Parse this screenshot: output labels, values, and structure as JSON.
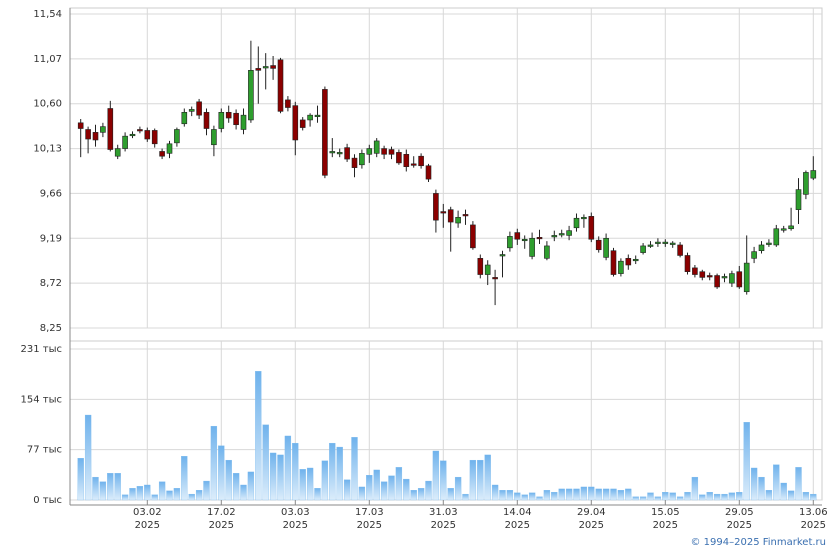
{
  "chart_data": [
    {
      "type": "candlestick",
      "open": [
        10.4,
        10.33,
        10.3,
        10.3,
        10.55,
        10.05,
        10.13,
        10.27,
        10.33,
        10.32,
        10.32,
        10.1,
        10.08,
        10.19,
        10.39,
        10.52,
        10.62,
        10.51,
        10.17,
        10.34,
        10.51,
        10.5,
        10.33,
        10.43,
        10.97,
        10.98,
        11.0,
        11.06,
        10.64,
        10.58,
        10.43,
        10.43,
        10.47,
        10.75,
        10.09,
        10.09,
        10.14,
        10.03,
        9.96,
        10.07,
        10.08,
        10.13,
        10.12,
        10.09,
        10.07,
        9.97,
        10.05,
        9.95,
        9.66,
        9.47,
        9.49,
        9.35,
        9.44,
        9.33,
        8.98,
        8.81,
        8.78,
        9.01,
        9.09,
        9.25,
        9.17,
        9.0,
        9.2,
        8.98,
        9.21,
        9.23,
        9.22,
        9.3,
        9.4,
        9.42,
        9.17,
        8.99,
        9.06,
        8.82,
        8.98,
        8.96,
        9.04,
        9.12,
        9.14,
        9.14,
        9.13,
        9.12,
        9.01,
        8.88,
        8.84,
        8.8,
        8.8,
        8.78,
        8.72,
        8.84,
        8.63,
        8.98,
        9.06,
        9.13,
        9.12,
        9.28,
        9.29,
        9.49,
        9.65,
        9.82
      ],
      "high": [
        10.44,
        10.36,
        10.38,
        10.4,
        10.63,
        10.17,
        10.3,
        10.31,
        10.36,
        10.35,
        10.34,
        10.13,
        10.21,
        10.35,
        10.55,
        10.57,
        10.65,
        10.55,
        10.37,
        10.55,
        10.58,
        10.54,
        10.55,
        11.26,
        11.2,
        11.13,
        11.1,
        11.08,
        10.68,
        10.62,
        10.46,
        10.5,
        10.58,
        10.78,
        10.24,
        10.13,
        10.18,
        10.07,
        10.12,
        10.17,
        10.24,
        10.16,
        10.15,
        10.12,
        10.12,
        10.05,
        10.08,
        9.97,
        9.7,
        9.55,
        9.52,
        9.48,
        9.49,
        9.37,
        9.02,
        8.96,
        8.86,
        9.06,
        9.26,
        9.29,
        9.22,
        9.25,
        9.28,
        9.16,
        9.27,
        9.28,
        9.32,
        9.45,
        9.44,
        9.46,
        9.21,
        9.24,
        9.09,
        8.98,
        9.02,
        9.01,
        9.14,
        9.16,
        9.19,
        9.18,
        9.16,
        9.15,
        9.04,
        8.91,
        8.86,
        8.83,
        8.82,
        8.82,
        8.85,
        8.9,
        9.22,
        9.1,
        9.16,
        9.18,
        9.33,
        9.32,
        9.51,
        9.82,
        9.9,
        10.05
      ],
      "low": [
        10.04,
        10.08,
        10.15,
        10.25,
        10.1,
        10.02,
        10.1,
        10.24,
        10.29,
        10.2,
        10.14,
        10.02,
        10.03,
        10.15,
        10.36,
        10.47,
        10.44,
        10.27,
        10.05,
        10.3,
        10.4,
        10.33,
        10.28,
        10.4,
        10.6,
        10.75,
        10.85,
        10.5,
        10.52,
        10.06,
        10.32,
        10.36,
        10.4,
        9.82,
        10.04,
        10.04,
        9.99,
        9.83,
        9.92,
        9.98,
        10.04,
        10.02,
        10.02,
        9.96,
        9.89,
        9.93,
        9.92,
        9.78,
        9.25,
        9.3,
        9.05,
        9.3,
        9.33,
        9.07,
        8.77,
        8.7,
        8.49,
        8.78,
        9.05,
        9.12,
        9.08,
        8.97,
        9.13,
        8.96,
        9.16,
        9.2,
        9.17,
        9.26,
        9.3,
        9.15,
        9.04,
        8.96,
        8.79,
        8.79,
        8.86,
        8.92,
        9.02,
        9.09,
        9.1,
        9.1,
        9.09,
        8.99,
        8.81,
        8.78,
        8.75,
        8.75,
        8.66,
        8.73,
        8.68,
        8.66,
        8.6,
        8.93,
        9.03,
        9.1,
        9.1,
        9.25,
        9.27,
        9.34,
        9.6,
        9.8
      ],
      "close": [
        10.34,
        10.23,
        10.22,
        10.36,
        10.12,
        10.13,
        10.26,
        10.28,
        10.32,
        10.23,
        10.18,
        10.05,
        10.18,
        10.33,
        10.51,
        10.54,
        10.48,
        10.34,
        10.33,
        10.51,
        10.45,
        10.38,
        10.48,
        10.95,
        10.95,
        10.99,
        10.97,
        10.52,
        10.56,
        10.22,
        10.35,
        10.48,
        10.48,
        9.85,
        10.1,
        10.09,
        10.02,
        9.93,
        10.08,
        10.13,
        10.21,
        10.07,
        10.07,
        9.98,
        9.94,
        9.96,
        9.95,
        9.81,
        9.38,
        9.46,
        9.36,
        9.41,
        9.43,
        9.09,
        8.81,
        8.91,
        8.77,
        9.02,
        9.21,
        9.18,
        9.18,
        9.19,
        9.19,
        9.11,
        9.22,
        9.24,
        9.27,
        9.4,
        9.41,
        9.18,
        9.07,
        9.19,
        8.81,
        8.95,
        8.91,
        8.97,
        9.11,
        9.12,
        9.15,
        9.15,
        9.14,
        9.01,
        8.84,
        8.81,
        8.78,
        8.79,
        8.68,
        8.79,
        8.82,
        8.68,
        8.93,
        9.05,
        9.12,
        9.14,
        9.29,
        9.29,
        9.32,
        9.7,
        9.88,
        9.9
      ],
      "up_color": "#2e9e2e",
      "down_color": "#8b0000",
      "ylim": [
        8.25,
        11.54
      ],
      "yticks": [
        {
          "value": 8.25,
          "label": "8,25"
        },
        {
          "value": 8.72,
          "label": "8,72"
        },
        {
          "value": 9.19,
          "label": "9,19"
        },
        {
          "value": 9.66,
          "label": "9,66"
        },
        {
          "value": 10.13,
          "label": "10,13"
        },
        {
          "value": 10.6,
          "label": "10,60"
        },
        {
          "value": 11.07,
          "label": "11,07"
        },
        {
          "value": 11.54,
          "label": "11,54"
        }
      ],
      "grid": true
    },
    {
      "type": "bar",
      "categories": [
        null,
        null,
        null,
        null,
        null,
        null,
        null,
        null,
        null,
        "03.02",
        null,
        null,
        null,
        null,
        null,
        null,
        null,
        null,
        null,
        "17.02",
        null,
        null,
        null,
        null,
        null,
        null,
        null,
        null,
        null,
        "03.03",
        null,
        null,
        null,
        null,
        null,
        null,
        null,
        null,
        null,
        "17.03",
        null,
        null,
        null,
        null,
        null,
        null,
        null,
        null,
        null,
        "31.03",
        null,
        null,
        null,
        null,
        null,
        null,
        null,
        null,
        null,
        "14.04",
        null,
        null,
        null,
        null,
        null,
        null,
        null,
        null,
        null,
        "29.04",
        null,
        null,
        null,
        null,
        null,
        null,
        null,
        null,
        null,
        "15.05",
        null,
        null,
        null,
        null,
        null,
        null,
        null,
        null,
        null,
        "29.05",
        null,
        null,
        null,
        null,
        null,
        null,
        null,
        null,
        null,
        "13.06"
      ],
      "year": "2025",
      "values": [
        64,
        130,
        35,
        28,
        41,
        41,
        8,
        18,
        21,
        23,
        8,
        28,
        14,
        18,
        67,
        9,
        15,
        29,
        113,
        83,
        61,
        41,
        23,
        43,
        197,
        115,
        72,
        69,
        98,
        87,
        47,
        49,
        18,
        60,
        87,
        81,
        31,
        96,
        20,
        38,
        46,
        28,
        37,
        50,
        32,
        15,
        18,
        29,
        75,
        60,
        18,
        35,
        9,
        61,
        61,
        69,
        23,
        15,
        15,
        11,
        8,
        11,
        5,
        15,
        12,
        17,
        17,
        17,
        20,
        20,
        17,
        17,
        17,
        15,
        17,
        5,
        5,
        11,
        5,
        12,
        11,
        5,
        12,
        35,
        8,
        12,
        9,
        9,
        11,
        12,
        119,
        49,
        35,
        15,
        54,
        26,
        14,
        50,
        12,
        9
      ],
      "color": "#7dbbef",
      "ylim": [
        0,
        231
      ],
      "yticks": [
        {
          "value": 0,
          "label": "0 тыс"
        },
        {
          "value": 77,
          "label": "77 тыс"
        },
        {
          "value": 154,
          "label": "154 тыс"
        },
        {
          "value": 231,
          "label": "231 тыс"
        }
      ],
      "grid": true
    }
  ],
  "footer": "© 1994–2025 Finmarket.ru"
}
